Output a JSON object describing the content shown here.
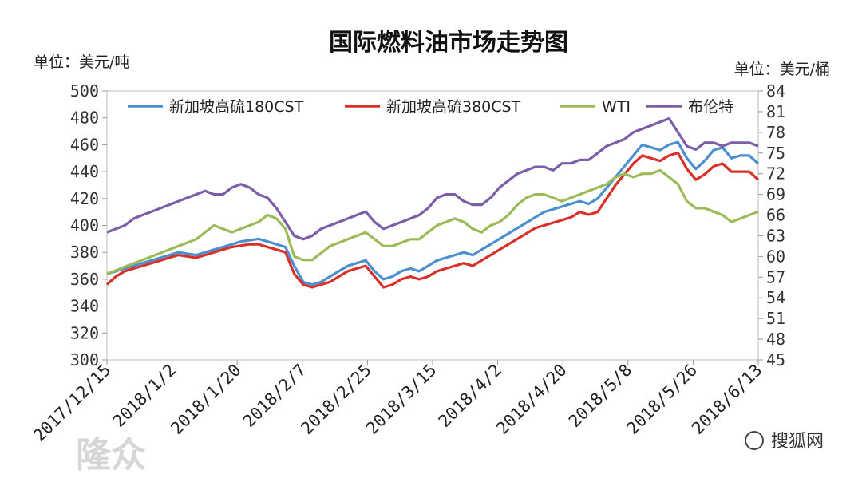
{
  "chart_data": {
    "type": "line",
    "title": "国际燃料油市场走势图",
    "left_unit": "单位：美元/吨",
    "right_unit": "单位：美元/桶",
    "left_axis": {
      "min": 300,
      "max": 500,
      "step": 20,
      "ticks": [
        "300",
        "320",
        "340",
        "360",
        "380",
        "400",
        "420",
        "440",
        "460",
        "480",
        "500"
      ]
    },
    "right_axis": {
      "min": 45,
      "max": 84,
      "step": 3,
      "ticks": [
        "45",
        "48",
        "51",
        "54",
        "57",
        "60",
        "63",
        "66",
        "69",
        "72",
        "75",
        "78",
        "81",
        "84"
      ]
    },
    "x_ticks": [
      "2017/12/15",
      "2018/1/2",
      "2018/1/20",
      "2018/2/7",
      "2018/2/25",
      "2018/3/15",
      "2018/4/2",
      "2018/4/20",
      "2018/5/8",
      "2018/5/26",
      "2018/6/13"
    ],
    "legend_placement": "top",
    "grid": false,
    "series": [
      {
        "name": "新加坡高硫180CST",
        "axis": "left",
        "color": "#4a90d0",
        "values": [
          364,
          366,
          368,
          370,
          372,
          374,
          376,
          378,
          380,
          379,
          378,
          380,
          382,
          384,
          386,
          388,
          389,
          390,
          388,
          386,
          384,
          370,
          358,
          356,
          358,
          362,
          366,
          370,
          372,
          374,
          366,
          360,
          362,
          366,
          368,
          366,
          370,
          374,
          376,
          378,
          380,
          378,
          382,
          386,
          390,
          394,
          398,
          402,
          406,
          410,
          412,
          414,
          416,
          418,
          416,
          420,
          428,
          436,
          444,
          452,
          460,
          458,
          456,
          460,
          462,
          450,
          442,
          448,
          456,
          458,
          450,
          452,
          452,
          446
        ]
      },
      {
        "name": "新加坡高硫380CST",
        "axis": "left",
        "color": "#d9302a",
        "values": [
          356,
          362,
          366,
          368,
          370,
          372,
          374,
          376,
          378,
          377,
          376,
          378,
          380,
          382,
          384,
          385,
          386,
          386,
          384,
          382,
          380,
          364,
          356,
          354,
          356,
          358,
          362,
          366,
          368,
          370,
          362,
          354,
          356,
          360,
          362,
          360,
          362,
          366,
          368,
          370,
          372,
          370,
          374,
          378,
          382,
          386,
          390,
          394,
          398,
          400,
          402,
          404,
          406,
          410,
          408,
          410,
          420,
          430,
          438,
          446,
          452,
          450,
          448,
          452,
          454,
          442,
          434,
          438,
          444,
          446,
          440,
          440,
          440,
          434
        ]
      },
      {
        "name": "WTI",
        "axis": "right",
        "color": "#9bbb59",
        "values": [
          57.5,
          58,
          58.5,
          59,
          59.5,
          60,
          60.5,
          61,
          61.5,
          62,
          62.5,
          63.5,
          64.5,
          64,
          63.5,
          64,
          64.5,
          65,
          66,
          65.5,
          64,
          60,
          59.5,
          59.5,
          60.5,
          61.5,
          62,
          62.5,
          63,
          63.5,
          62.5,
          61.5,
          61.5,
          62,
          62.5,
          62.5,
          63.5,
          64.5,
          65,
          65.5,
          65,
          64,
          63.5,
          64.5,
          65,
          66,
          67.5,
          68.5,
          69,
          69,
          68.5,
          68,
          68.5,
          69,
          69.5,
          70,
          70.5,
          71.5,
          72,
          71.5,
          72,
          72,
          72.5,
          71.5,
          70.5,
          68,
          67,
          67,
          66.5,
          66,
          65,
          65.5,
          66,
          66.5
        ]
      },
      {
        "name": "布伦特",
        "axis": "right",
        "color": "#7b5ea7",
        "values": [
          63.5,
          64,
          64.5,
          65.5,
          66,
          66.5,
          67,
          67.5,
          68,
          68.5,
          69,
          69.5,
          69,
          69,
          70,
          70.5,
          70,
          69,
          68.5,
          67,
          65,
          63,
          62.5,
          63,
          64,
          64.5,
          65,
          65.5,
          66,
          66.5,
          65,
          64,
          64.5,
          65,
          65.5,
          66,
          67,
          68.5,
          69,
          69,
          68,
          67.5,
          67.5,
          68.5,
          70,
          71,
          72,
          72.5,
          73,
          73,
          72.5,
          73.5,
          73.5,
          74,
          74,
          75,
          76,
          76.5,
          77,
          78,
          78.5,
          79,
          79.5,
          80,
          78,
          76,
          75.5,
          76.5,
          76.5,
          76,
          76.5,
          76.5,
          76.5,
          76
        ]
      }
    ]
  },
  "watermark": {
    "left": "隆众",
    "right_logo": "搜狐网"
  }
}
